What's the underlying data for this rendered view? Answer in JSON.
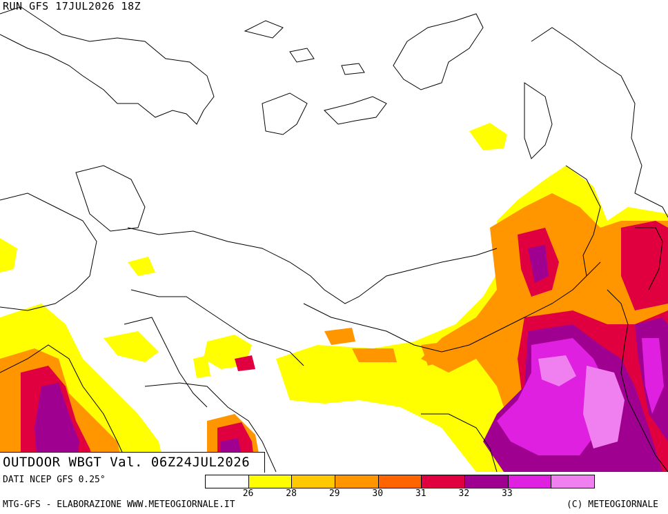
{
  "header": {
    "run_label": "RUN GFS 17JUL2026 18Z"
  },
  "map_title": "OUTDOOR WBGT Val. 06Z24JUL2026",
  "source": "DATI NCEP GFS 0.25°",
  "footer": {
    "left": "MTG-GFS - ELABORAZIONE WWW.METEOGIORNALE.IT",
    "right": "(C) METEOGIORNALE"
  },
  "legend": {
    "colors": [
      "#ffffff",
      "#ffff00",
      "#ffc800",
      "#ff9600",
      "#ff6400",
      "#e00040",
      "#a00090",
      "#e020e0",
      "#f080f0"
    ],
    "labels": [
      "26",
      "28",
      "29",
      "30",
      "31",
      "32",
      "33"
    ]
  }
}
